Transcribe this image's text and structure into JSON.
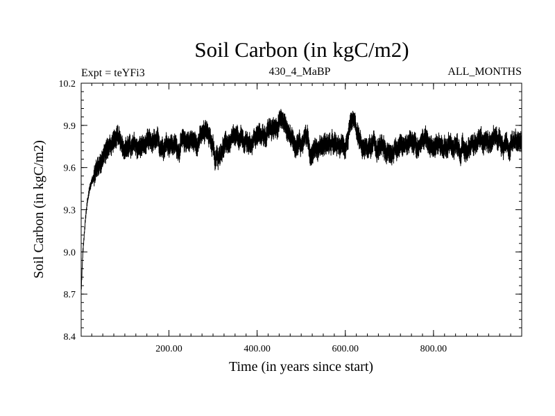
{
  "chart_data": {
    "type": "line",
    "title": "Soil Carbon (in kgC/m2)",
    "subtitle_left": "Expt = teYFi3",
    "subtitle_center": "430_4_MaBP",
    "subtitle_right": "ALL_MONTHS",
    "xlabel": "Time (in years since start)",
    "ylabel": "Soil Carbon (in kgC/m2)",
    "xlim": [
      1,
      1000
    ],
    "ylim": [
      8.4,
      10.2
    ],
    "x_ticks": [
      200,
      400,
      600,
      800
    ],
    "x_tick_labels": [
      "200.00",
      "400.00",
      "600.00",
      "800.00"
    ],
    "y_ticks": [
      8.4,
      8.7,
      9.0,
      9.3,
      9.6,
      9.9,
      10.2
    ],
    "y_tick_labels": [
      "8.4",
      "8.7",
      "9.0",
      "9.3",
      "9.6",
      "9.9",
      "10.2"
    ],
    "series": [
      {
        "name": "Soil Carbon",
        "color": "#000000",
        "band_half_width": 0.07,
        "x": [
          1,
          5,
          10,
          15,
          20,
          25,
          30,
          40,
          50,
          60,
          70,
          80,
          100,
          120,
          140,
          160,
          180,
          200,
          220,
          240,
          260,
          280,
          290,
          300,
          305,
          310,
          320,
          340,
          360,
          380,
          400,
          420,
          440,
          450,
          460,
          470,
          480,
          500,
          510,
          520,
          540,
          560,
          580,
          600,
          610,
          620,
          630,
          640,
          660,
          680,
          700,
          710,
          720,
          740,
          760,
          780,
          800,
          820,
          840,
          860,
          880,
          900,
          920,
          940,
          960,
          980,
          1000
        ],
        "y": [
          8.72,
          9.0,
          9.2,
          9.35,
          9.45,
          9.5,
          9.55,
          9.62,
          9.68,
          9.72,
          9.78,
          9.8,
          9.76,
          9.74,
          9.75,
          9.77,
          9.76,
          9.78,
          9.74,
          9.8,
          9.78,
          9.84,
          9.86,
          9.75,
          9.62,
          9.68,
          9.74,
          9.78,
          9.8,
          9.77,
          9.82,
          9.84,
          9.88,
          9.95,
          9.92,
          9.86,
          9.8,
          9.76,
          9.84,
          9.72,
          9.75,
          9.77,
          9.74,
          9.76,
          9.85,
          9.9,
          9.8,
          9.72,
          9.75,
          9.74,
          9.68,
          9.72,
          9.77,
          9.76,
          9.78,
          9.8,
          9.78,
          9.75,
          9.76,
          9.72,
          9.74,
          9.77,
          9.8,
          9.82,
          9.79,
          9.76,
          9.78
        ]
      }
    ]
  }
}
